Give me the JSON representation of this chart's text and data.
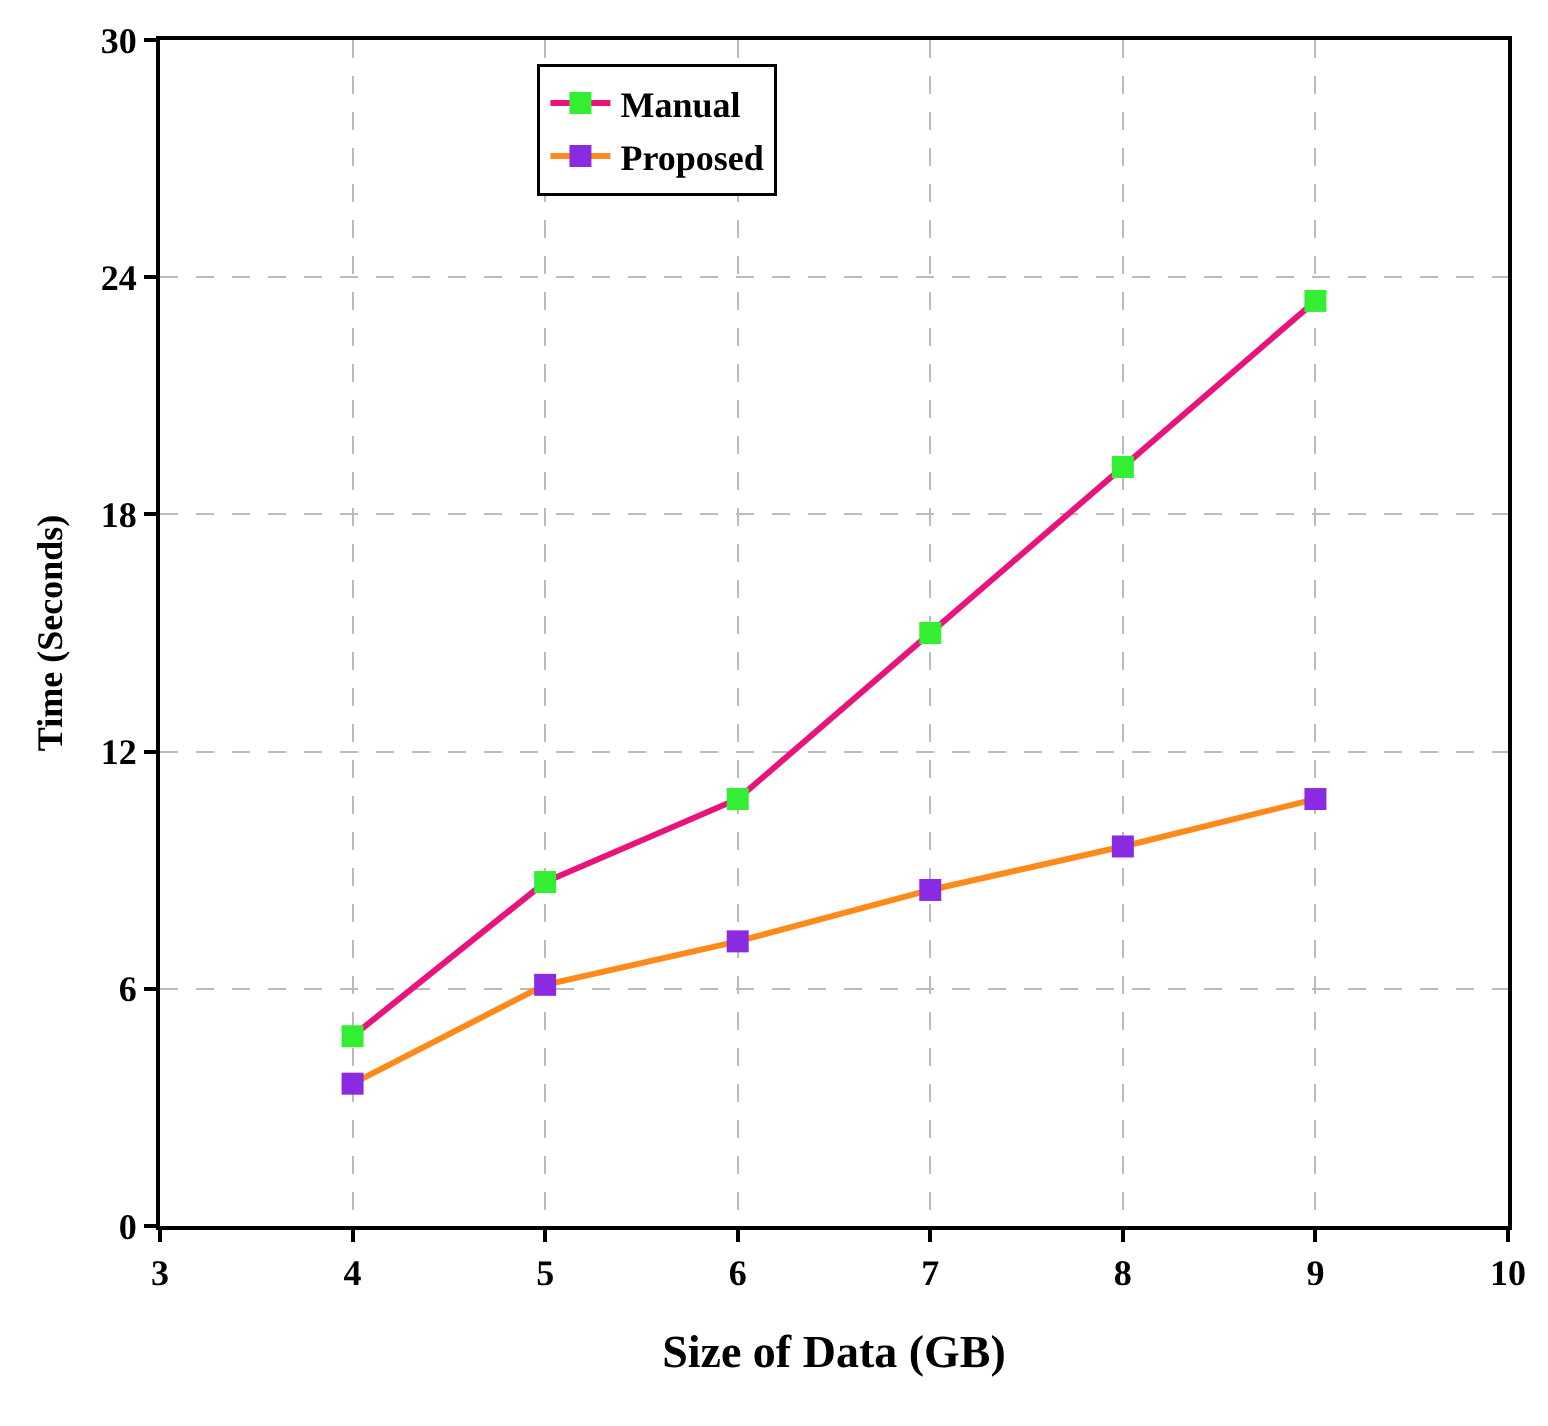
{
  "chart_data": {
    "type": "line",
    "xlabel": "Size of Data (GB)",
    "ylabel": "Time (Seconds)",
    "x": [
      4,
      5,
      6,
      7,
      8,
      9
    ],
    "series": [
      {
        "name": "Manual",
        "color": "#e8147c",
        "colors": [
          "#33ee33",
          "#33ee33",
          "#33ee33",
          "#33ee33",
          "#33ee33",
          "#33ee33"
        ],
        "values": [
          4.8,
          8.7,
          10.8,
          15.0,
          19.2,
          23.4
        ]
      },
      {
        "name": "Proposed",
        "color": "#ff8a1c",
        "colors": [
          "#8a2be2",
          "#8a2be2",
          "#8a2be2",
          "#8a2be2",
          "#8a2be2",
          "#8a2be2"
        ],
        "values": [
          3.6,
          6.1,
          7.2,
          8.5,
          9.6,
          10.8
        ]
      }
    ],
    "xlim": [
      3,
      10
    ],
    "xticks": [
      3,
      4,
      5,
      6,
      7,
      8,
      9,
      10
    ],
    "ylim": [
      0,
      30
    ],
    "yticks": [
      0,
      6,
      12,
      18,
      24,
      30
    ],
    "grid": true,
    "legend": "top",
    "marker": "square",
    "line_style": "solid"
  }
}
